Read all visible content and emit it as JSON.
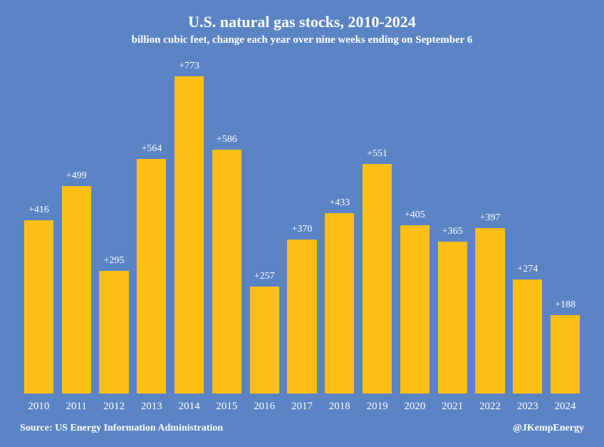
{
  "chart": {
    "type": "bar",
    "title": "U.S. natural gas stocks, 2010-2024",
    "subtitle": "billion cubic feet, change each year over  nine weeks ending on September 6",
    "title_fontsize": 22,
    "subtitle_fontsize": 15,
    "title_color": "#ffffff",
    "subtitle_color": "#ffffff",
    "background_color": "#5b84c4",
    "bar_color": "#fcbf17",
    "bar_width_ratio": 0.78,
    "ylim": [
      0,
      800
    ],
    "label_prefix": "+",
    "value_label_color": "#ffffff",
    "value_label_fontsize": 14,
    "xaxis_label_color": "#ffffff",
    "xaxis_label_fontsize": 15,
    "categories": [
      "2010",
      "2011",
      "2012",
      "2013",
      "2014",
      "2015",
      "2016",
      "2017",
      "2018",
      "2019",
      "2020",
      "2021",
      "2022",
      "2023",
      "2024"
    ],
    "values": [
      416,
      499,
      295,
      564,
      773,
      586,
      257,
      370,
      433,
      551,
      405,
      365,
      397,
      274,
      188
    ]
  },
  "footer": {
    "source": "Source: US Energy Information Administration",
    "attribution": "@JKempEnergy",
    "color": "#ffffff",
    "fontsize": 14
  }
}
